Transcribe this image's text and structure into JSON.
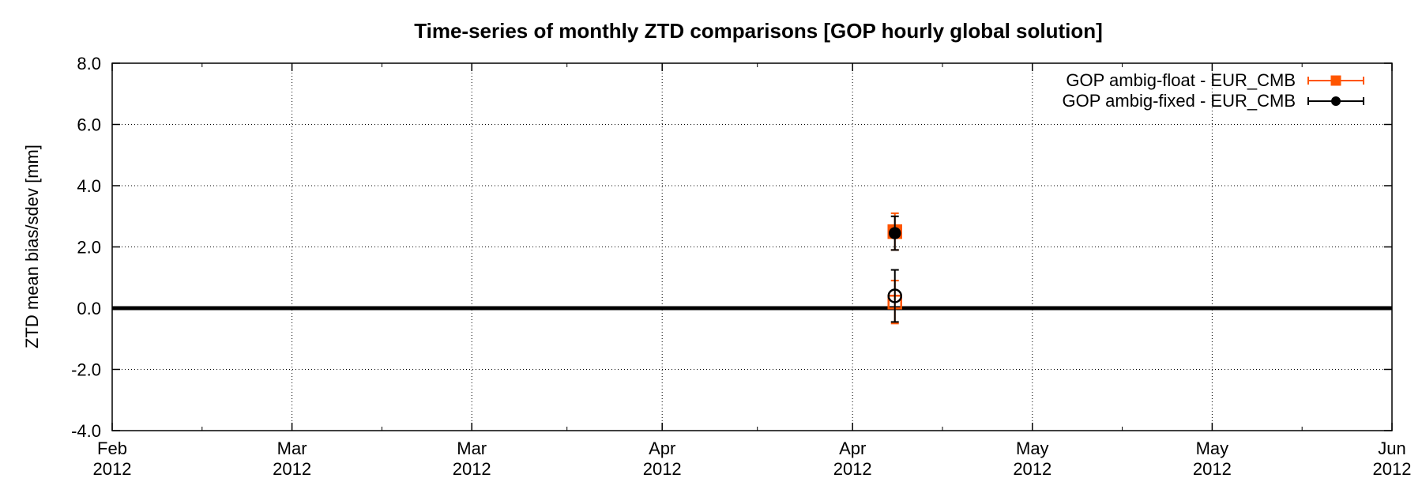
{
  "chart_data": {
    "type": "scatter",
    "title": "Time-series of monthly ZTD comparisons [GOP hourly global solution]",
    "xlabel": "",
    "ylabel": "ZTD mean bias/sdev [mm]",
    "ylim": [
      -4.0,
      8.0
    ],
    "yticks": [
      -4.0,
      -2.0,
      0.0,
      2.0,
      4.0,
      6.0,
      8.0
    ],
    "ytick_labels": [
      "-4.0",
      "-2.0",
      "0.0",
      "2.0",
      "4.0",
      "6.0",
      "8.0"
    ],
    "xlim": [
      "2012-02-01",
      "2012-06-01"
    ],
    "xticks": [
      "2012-02-01",
      "2012-02-18",
      "2012-03-06",
      "2012-03-24",
      "2012-04-11",
      "2012-04-28",
      "2012-05-15",
      "2012-06-01"
    ],
    "xtick_labels": [
      [
        "Feb",
        "2012"
      ],
      [
        "Mar",
        "2012"
      ],
      [
        "Mar",
        "2012"
      ],
      [
        "Apr",
        "2012"
      ],
      [
        "Apr",
        "2012"
      ],
      [
        "May",
        "2012"
      ],
      [
        "May",
        "2012"
      ],
      [
        "Jun",
        "2012"
      ]
    ],
    "grid": true,
    "legend_position": "top-right",
    "zero_line": true,
    "series": [
      {
        "name": "GOP ambig-float - EUR_CMB",
        "color": "#ff5500",
        "marker": "square",
        "x": [
          "2012-04-15",
          "2012-04-15"
        ],
        "values": [
          2.5,
          0.2
        ],
        "error": [
          0.6,
          0.7
        ],
        "filled": [
          true,
          false
        ]
      },
      {
        "name": "GOP ambig-fixed - EUR_CMB",
        "color": "#000000",
        "marker": "circle",
        "x": [
          "2012-04-15",
          "2012-04-15"
        ],
        "values": [
          2.45,
          0.4
        ],
        "error": [
          0.55,
          0.85
        ],
        "filled": [
          true,
          false
        ]
      }
    ]
  }
}
